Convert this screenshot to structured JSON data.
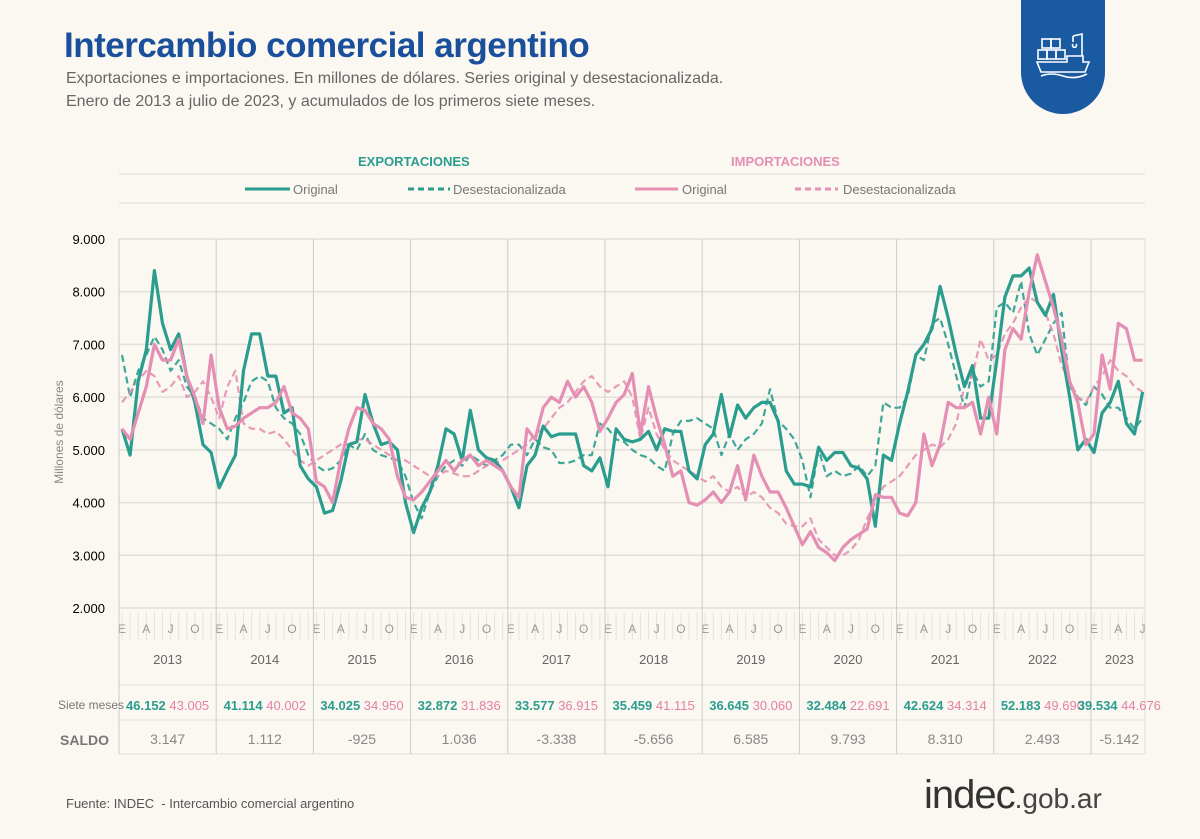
{
  "header": {
    "title": "Intercambio comercial argentino",
    "subtitle_1": "Exportaciones e importaciones. En millones de dólares. Series original y desestacionalizada.",
    "subtitle_2": "Enero de 2013 a julio de 2023, y acumulados de los primeros siete meses.",
    "badge_icon": "cargo-ship-icon",
    "brand_color": "#1a5aa0"
  },
  "chart_data": {
    "type": "line",
    "ylabel": "Millones de dólares",
    "ylim": [
      2000,
      9000
    ],
    "yticks": [
      2000,
      3000,
      4000,
      5000,
      6000,
      7000,
      8000,
      9000
    ],
    "ytick_labels": [
      "2.000",
      "3.000",
      "4.000",
      "5.000",
      "6.000",
      "7.000",
      "8.000",
      "9.000"
    ],
    "grid": true,
    "legend_placement": "top",
    "x_start": "2013-01",
    "x_end": "2023-07",
    "month_labels": [
      "E",
      "A",
      "J",
      "O"
    ],
    "years": [
      "2013",
      "2014",
      "2015",
      "2016",
      "2017",
      "2018",
      "2019",
      "2020",
      "2021",
      "2022",
      "2023"
    ],
    "groups": [
      {
        "label": "EXPORTACIONES",
        "color": "#2a9d8f"
      },
      {
        "label": "IMPORTACIONES",
        "color": "#e48fb3"
      }
    ],
    "series": [
      {
        "name": "Original",
        "group": "EXPORTACIONES",
        "style": "solid",
        "color": "#2a9d8f",
        "values": [
          5400,
          4900,
          6300,
          6900,
          8400,
          7400,
          6900,
          7200,
          6400,
          5900,
          5100,
          4950,
          4280,
          4600,
          4900,
          6500,
          7200,
          7200,
          6400,
          6400,
          5700,
          5800,
          4700,
          4450,
          4300,
          3800,
          3850,
          4400,
          5100,
          5150,
          6050,
          5500,
          5100,
          5150,
          5000,
          4000,
          3430,
          3900,
          4200,
          4700,
          5400,
          5300,
          4800,
          5750,
          5000,
          4850,
          4800,
          4600,
          4300,
          3900,
          4700,
          4900,
          5450,
          5250,
          5300,
          5300,
          5300,
          4700,
          4600,
          4850,
          4300,
          5400,
          5200,
          5150,
          5200,
          5350,
          5000,
          5400,
          5350,
          5350,
          4600,
          4450,
          5100,
          5300,
          6050,
          5250,
          5850,
          5600,
          5800,
          5900,
          5900,
          5550,
          4600,
          4350,
          4350,
          4300,
          5050,
          4800,
          4950,
          4950,
          4700,
          4650,
          4450,
          3550,
          4900,
          4800,
          5500,
          6100,
          6800,
          7000,
          7300,
          8100,
          7500,
          6800,
          6200,
          6600,
          5600,
          5600,
          6700,
          7900,
          8300,
          8300,
          8450,
          7800,
          7550,
          7950,
          6900,
          6000,
          5000,
          5200,
          4950,
          5700,
          5900,
          6300,
          5500,
          5300,
          6100
        ]
      },
      {
        "name": "Desestacionalizada",
        "group": "EXPORTACIONES",
        "style": "dashed",
        "color": "#2a9d8f",
        "values": [
          6800,
          6000,
          6500,
          6800,
          7150,
          6900,
          6500,
          6700,
          6200,
          6000,
          5600,
          5500,
          5400,
          5200,
          5600,
          5900,
          6300,
          6400,
          6300,
          5800,
          5600,
          5500,
          5300,
          4900,
          4700,
          4600,
          4650,
          4800,
          5100,
          5000,
          5300,
          5000,
          4900,
          4850,
          4800,
          4500,
          4000,
          3700,
          4200,
          4500,
          4700,
          4800,
          4700,
          4900,
          4800,
          4700,
          4800,
          4900,
          5100,
          5100,
          4900,
          5200,
          5050,
          5000,
          4750,
          4750,
          4800,
          4900,
          4900,
          5500,
          5400,
          5200,
          5150,
          5000,
          4900,
          4850,
          4700,
          4600,
          5300,
          5550,
          5550,
          5600,
          5500,
          5400,
          4900,
          5300,
          5000,
          5200,
          5300,
          5500,
          6150,
          5550,
          5400,
          5200,
          4800,
          4100,
          5000,
          4500,
          4600,
          4500,
          4550,
          4700,
          4500,
          4700,
          5900,
          5800,
          5800,
          6000,
          6800,
          6700,
          7400,
          7500,
          7000,
          6400,
          5800,
          6500,
          6200,
          6300,
          7700,
          7800,
          7600,
          8200,
          7200,
          6800,
          7100,
          7400,
          7600,
          6200,
          6000,
          5850,
          6200,
          6050,
          5800,
          5800,
          5600,
          5400,
          5600
        ]
      },
      {
        "name": "Original",
        "group": "IMPORTACIONES",
        "style": "solid",
        "color": "#e48fb3",
        "values": [
          5400,
          5200,
          5700,
          6200,
          7000,
          6700,
          6700,
          7100,
          6400,
          6000,
          5500,
          6800,
          5800,
          5400,
          5450,
          5600,
          5700,
          5800,
          5800,
          5900,
          6200,
          5700,
          5600,
          5400,
          4400,
          4300,
          4000,
          4800,
          5400,
          5800,
          5750,
          5500,
          5400,
          5200,
          4500,
          4100,
          4050,
          4200,
          4400,
          4600,
          4800,
          4600,
          4800,
          4900,
          4700,
          4800,
          4700,
          4600,
          4300,
          4100,
          5400,
          5200,
          5800,
          6000,
          5900,
          6300,
          6000,
          6200,
          5900,
          5350,
          5600,
          5900,
          6050,
          6450,
          5300,
          6200,
          5600,
          5100,
          4500,
          4600,
          4000,
          3950,
          4050,
          4200,
          4000,
          4200,
          4700,
          4050,
          4900,
          4500,
          4200,
          4200,
          3900,
          3550,
          3200,
          3450,
          3150,
          3050,
          2900,
          3150,
          3300,
          3400,
          3500,
          4150,
          4100,
          4100,
          3800,
          3750,
          4000,
          5300,
          4700,
          5100,
          5900,
          5800,
          5800,
          5900,
          5300,
          6000,
          5300,
          6900,
          7300,
          7100,
          8000,
          8700,
          8200,
          7700,
          7100,
          6300,
          5900,
          5100,
          5300,
          6800,
          6150,
          7400,
          7300,
          6700,
          6700
        ]
      },
      {
        "name": "Desestacionalizada",
        "group": "IMPORTACIONES",
        "style": "dashed",
        "color": "#e48fb3",
        "values": [
          5900,
          6100,
          6300,
          6500,
          6400,
          6100,
          6200,
          6400,
          6000,
          6100,
          6300,
          6000,
          5600,
          6200,
          6500,
          5500,
          5400,
          5400,
          5300,
          5350,
          5200,
          5000,
          4800,
          4700,
          4800,
          4900,
          5000,
          5100,
          5100,
          5200,
          5200,
          5100,
          5000,
          4900,
          4800,
          4800,
          4700,
          4600,
          4500,
          4500,
          4600,
          4550,
          4500,
          4500,
          4600,
          4700,
          4750,
          4800,
          4900,
          5000,
          5100,
          5300,
          5400,
          5600,
          5800,
          5900,
          6100,
          6300,
          6400,
          6200,
          6100,
          6200,
          6300,
          6000,
          5200,
          5800,
          5300,
          5000,
          4800,
          4700,
          4600,
          4500,
          4400,
          4500,
          4300,
          4200,
          4300,
          4100,
          4200,
          4100,
          3900,
          3800,
          3600,
          3550,
          3550,
          3700,
          3300,
          3150,
          3000,
          3000,
          3100,
          3300,
          3700,
          4000,
          4300,
          4400,
          4500,
          4700,
          4900,
          5000,
          5100,
          5050,
          5200,
          5500,
          6200,
          6400,
          7100,
          6700,
          6800,
          7200,
          7400,
          7700,
          7900,
          7800,
          7600,
          7200,
          6600,
          6300,
          6000,
          5900,
          6200,
          6400,
          6700,
          6500,
          6400,
          6200,
          6100
        ]
      }
    ]
  },
  "table": {
    "row1_label": "Siete meses",
    "row2_label": "SALDO",
    "columns": [
      {
        "year": "2013",
        "exp": "46.152",
        "imp": "43.005",
        "saldo": "3.147"
      },
      {
        "year": "2014",
        "exp": "41.114",
        "imp": "40.002",
        "saldo": "1.112"
      },
      {
        "year": "2015",
        "exp": "34.025",
        "imp": "34.950",
        "saldo": "-925"
      },
      {
        "year": "2016",
        "exp": "32.872",
        "imp": "31.836",
        "saldo": "1.036"
      },
      {
        "year": "2017",
        "exp": "33.577",
        "imp": "36.915",
        "saldo": "-3.338"
      },
      {
        "year": "2018",
        "exp": "35.459",
        "imp": "41.115",
        "saldo": "-5.656"
      },
      {
        "year": "2019",
        "exp": "36.645",
        "imp": "30.060",
        "saldo": "6.585"
      },
      {
        "year": "2020",
        "exp": "32.484",
        "imp": "22.691",
        "saldo": "9.793"
      },
      {
        "year": "2021",
        "exp": "42.624",
        "imp": "34.314",
        "saldo": "8.310"
      },
      {
        "year": "2022",
        "exp": "52.183",
        "imp": "49.690",
        "saldo": "2.493"
      },
      {
        "year": "2023",
        "exp": "39.534",
        "imp": "44.676",
        "saldo": "-5.142"
      }
    ]
  },
  "footer": {
    "source": "Fuente: INDEC  - Intercambio comercial argentino",
    "logo_main": "indec",
    "logo_suffix": ".gob.ar"
  }
}
